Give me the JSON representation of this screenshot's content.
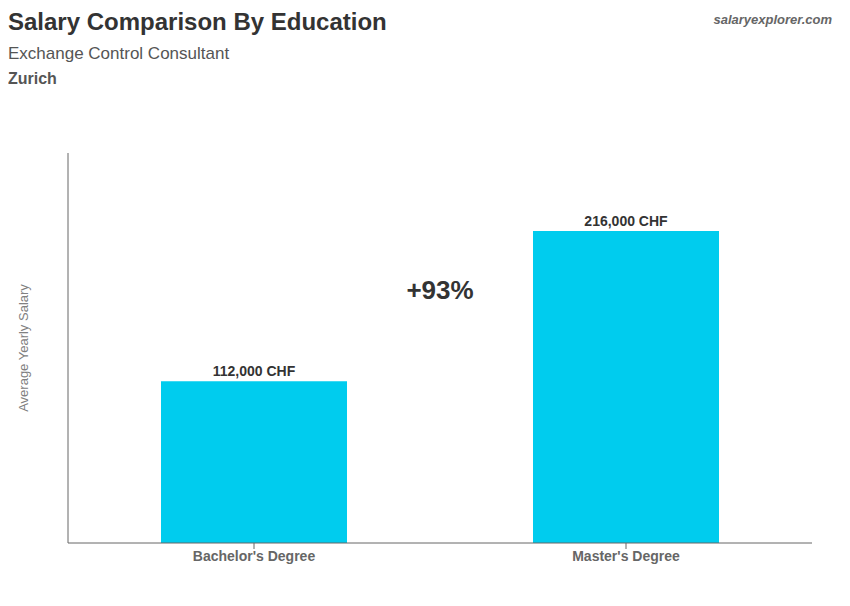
{
  "chart_data": {
    "type": "bar",
    "title": "Salary Comparison By Education",
    "subtitle": "Exchange Control Consultant",
    "ylabel": "Average Yearly Salary",
    "categories": [
      "Bachelor's Degree",
      "Master's Degree"
    ],
    "values": [
      112000,
      216000
    ],
    "value_labels": [
      "112,000 CHF",
      "216,000 CHF"
    ],
    "data_labels": true,
    "color": "#00ccee",
    "ylim": [
      0,
      270000
    ],
    "tick_labels": "x",
    "grid": false,
    "annotations": [
      {
        "text": "Zurich"
      },
      {
        "text": "+93%"
      },
      {
        "text": "salaryexplorer.com"
      }
    ]
  }
}
